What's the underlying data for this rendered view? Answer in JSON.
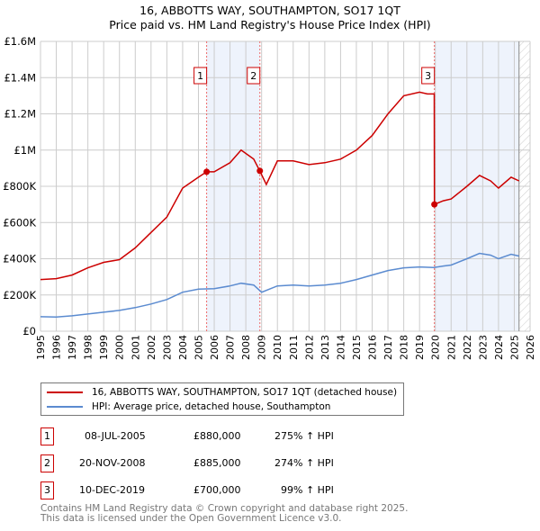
{
  "title": "16, ABBOTTS WAY, SOUTHAMPTON, SO17 1QT",
  "subtitle": "Price paid vs. HM Land Registry's House Price Index (HPI)",
  "chart_data": {
    "type": "line",
    "ylim": [
      0,
      1600000
    ],
    "xlim": [
      1995,
      2026
    ],
    "yticks": [
      {
        "v": 0,
        "label": "£0"
      },
      {
        "v": 200000,
        "label": "£200K"
      },
      {
        "v": 400000,
        "label": "£400K"
      },
      {
        "v": 600000,
        "label": "£600K"
      },
      {
        "v": 800000,
        "label": "£800K"
      },
      {
        "v": 1000000,
        "label": "£1M"
      },
      {
        "v": 1200000,
        "label": "£1.2M"
      },
      {
        "v": 1400000,
        "label": "£1.4M"
      },
      {
        "v": 1600000,
        "label": "£1.6M"
      }
    ],
    "xticks": [
      "1995",
      "1996",
      "1997",
      "1998",
      "1999",
      "2000",
      "2001",
      "2002",
      "2003",
      "2004",
      "2005",
      "2006",
      "2007",
      "2008",
      "2009",
      "2010",
      "2011",
      "2012",
      "2013",
      "2014",
      "2015",
      "2016",
      "2017",
      "2018",
      "2019",
      "2020",
      "2021",
      "2022",
      "2023",
      "2024",
      "2025",
      "2026"
    ],
    "shaded": [
      [
        2005.52,
        2008.89
      ],
      [
        2019.94,
        2025.3
      ]
    ],
    "data_end": 2025.3,
    "series": [
      {
        "name": "16, ABBOTTS WAY, SOUTHAMPTON, SO17 1QT (detached house)",
        "color": "#cc0000",
        "x": [
          1995,
          1996,
          1997,
          1998,
          1999,
          2000,
          2001,
          2002,
          2003,
          2004,
          2005,
          2005.52,
          2006,
          2007,
          2007.7,
          2008.5,
          2008.89,
          2009.3,
          2010,
          2011,
          2012,
          2013,
          2014,
          2015,
          2016,
          2017,
          2018,
          2019,
          2019.5,
          2019.93,
          2019.94,
          2020.5,
          2021,
          2022,
          2022.8,
          2023.5,
          2024,
          2024.8,
          2025.3
        ],
        "y": [
          285000,
          290000,
          310000,
          350000,
          380000,
          395000,
          460000,
          545000,
          630000,
          790000,
          850000,
          880000,
          880000,
          930000,
          1000000,
          950000,
          885000,
          810000,
          940000,
          940000,
          920000,
          930000,
          950000,
          1000000,
          1080000,
          1200000,
          1300000,
          1320000,
          1310000,
          1310000,
          700000,
          720000,
          730000,
          800000,
          860000,
          830000,
          790000,
          850000,
          830000
        ]
      },
      {
        "name": "HPI: Average price, detached house, Southampton",
        "color": "#5b8bd0",
        "x": [
          1995,
          1996,
          1997,
          1998,
          1999,
          2000,
          2001,
          2002,
          2003,
          2004,
          2005,
          2006,
          2007,
          2007.7,
          2008.5,
          2009,
          2010,
          2011,
          2012,
          2013,
          2014,
          2015,
          2016,
          2017,
          2018,
          2019,
          2019.9,
          2020.5,
          2021,
          2022,
          2022.8,
          2023.5,
          2024,
          2024.8,
          2025.3
        ],
        "y": [
          80000,
          78000,
          85000,
          95000,
          105000,
          115000,
          130000,
          150000,
          175000,
          215000,
          232000,
          235000,
          250000,
          265000,
          255000,
          215000,
          250000,
          255000,
          250000,
          255000,
          265000,
          285000,
          310000,
          335000,
          350000,
          355000,
          352000,
          360000,
          365000,
          400000,
          430000,
          420000,
          400000,
          425000,
          415000
        ]
      }
    ],
    "sales": [
      {
        "n": "1",
        "x": 2005.52,
        "y": 880000
      },
      {
        "n": "2",
        "x": 2008.89,
        "y": 885000
      },
      {
        "n": "3",
        "x": 2019.94,
        "y": 700000
      }
    ]
  },
  "legend": [
    "16, ABBOTTS WAY, SOUTHAMPTON, SO17 1QT (detached house)",
    "HPI: Average price, detached house, Southampton"
  ],
  "transactions": [
    {
      "n": "1",
      "date": "08-JUL-2005",
      "price": "£880,000",
      "hpi": "275% ↑ HPI"
    },
    {
      "n": "2",
      "date": "20-NOV-2008",
      "price": "£885,000",
      "hpi": "274% ↑ HPI"
    },
    {
      "n": "3",
      "date": "10-DEC-2019",
      "price": "£700,000",
      "hpi": "99% ↑ HPI"
    }
  ],
  "footer": [
    "Contains HM Land Registry data © Crown copyright and database right 2025.",
    "This data is licensed under the Open Government Licence v3.0."
  ]
}
